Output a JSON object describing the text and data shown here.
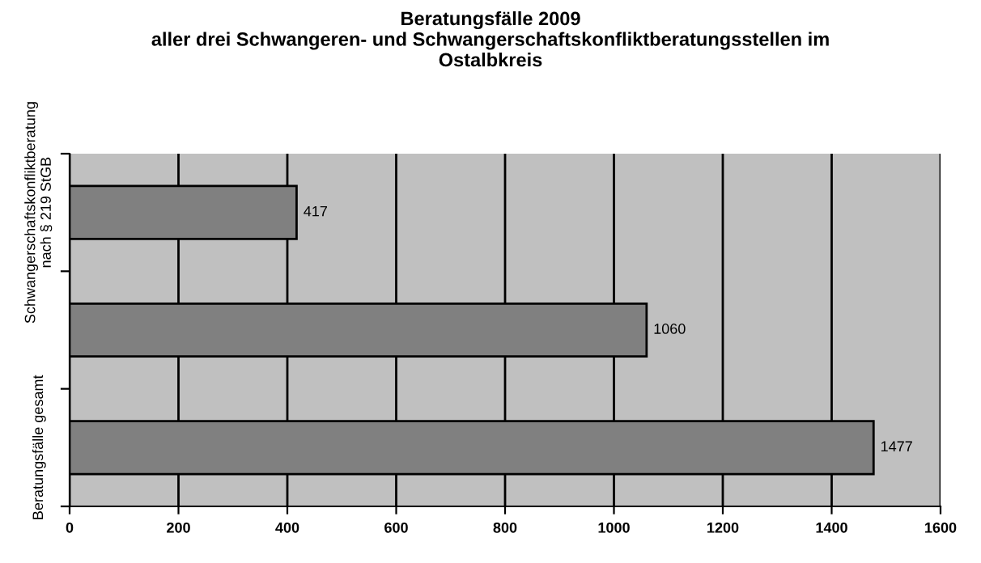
{
  "chart_data": {
    "type": "bar",
    "orientation": "horizontal",
    "title": "Beratungsfälle 2009\naller drei Schwangeren- und Schwangerschaftskonfliktberatungsstellen im\nOstalbkreis",
    "categories": [
      "Schwangerschaftskonfliktberatung\nnach § 219 StGB",
      null,
      "Beratungsfälle gesamt"
    ],
    "values": [
      417,
      1060,
      1477
    ],
    "color": "#808080",
    "xlim": [
      0,
      1600
    ],
    "xticks": [
      0,
      200,
      400,
      600,
      800,
      1000,
      1200,
      1400,
      1600
    ],
    "grid": "x",
    "data_labels": true
  }
}
